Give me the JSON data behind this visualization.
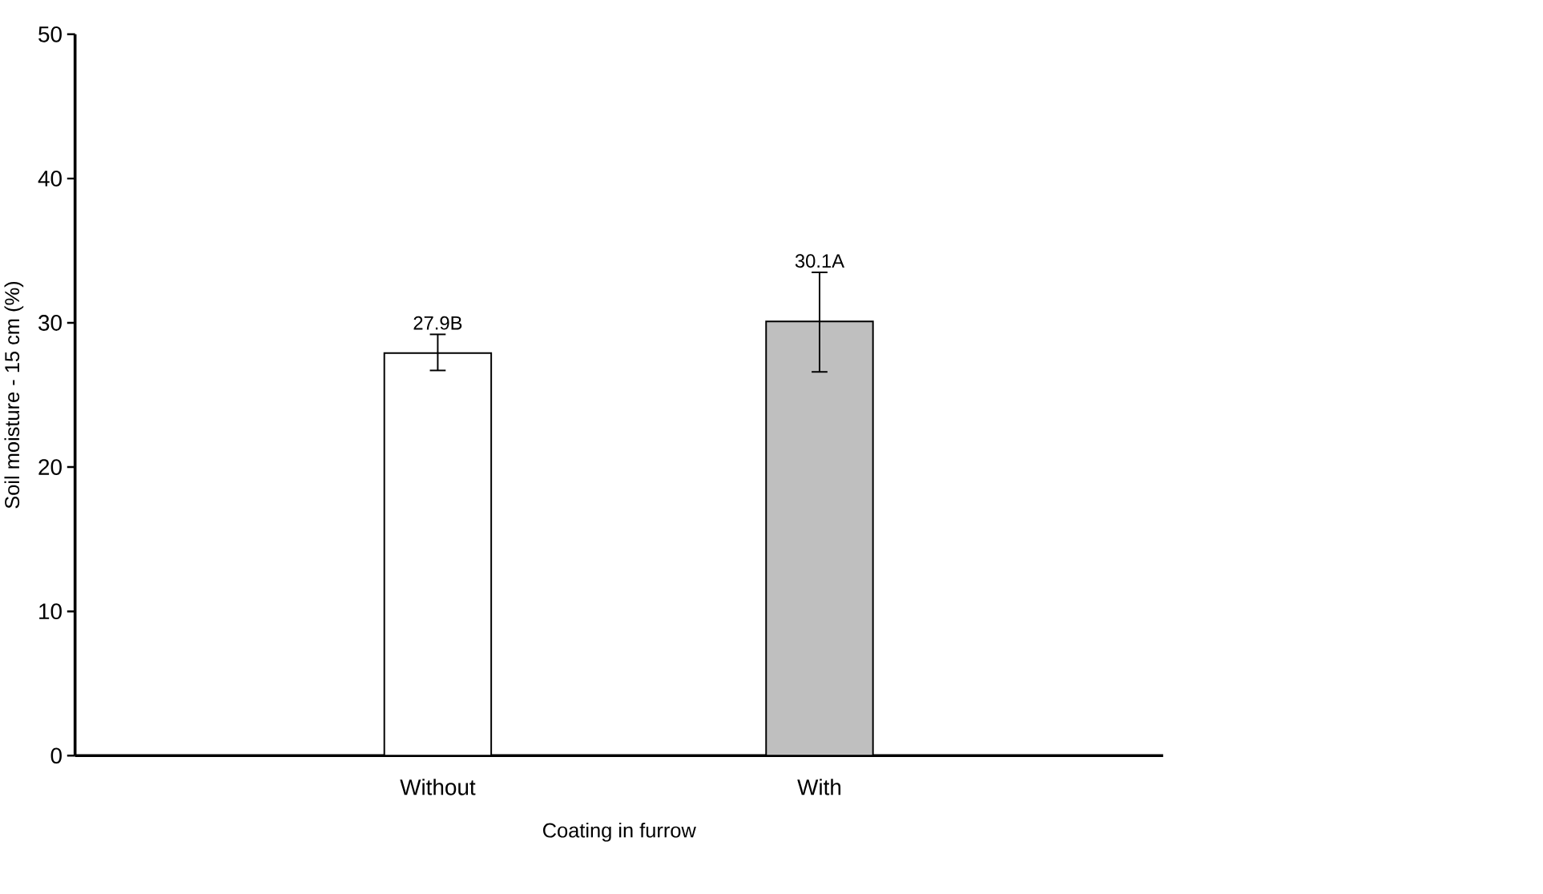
{
  "chart_data": {
    "type": "bar",
    "categories": [
      "Without",
      "With"
    ],
    "values": [
      27.9,
      30.1
    ],
    "colors": [
      "#ffffff",
      "#bfbfbf"
    ],
    "errors": [
      [
        26.7,
        29.2
      ],
      [
        26.6,
        33.5
      ]
    ],
    "value_labels": [
      "27.9B",
      "30.1A"
    ],
    "xlabel": "Coating in furrow",
    "ylabel": "Soil  moisture - 15 cm (%)",
    "ylim": [
      0,
      50
    ],
    "yticks": [
      0,
      10,
      20,
      30,
      40,
      50
    ],
    "grid": false
  }
}
